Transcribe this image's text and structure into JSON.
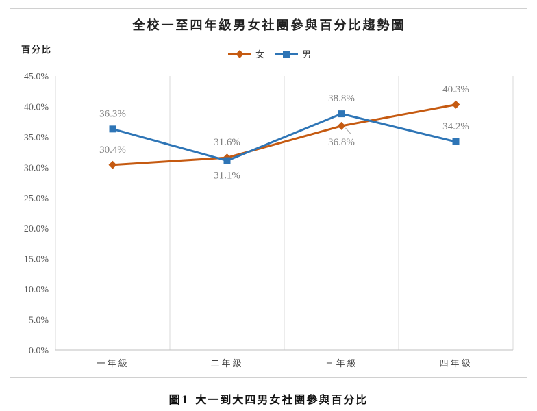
{
  "chart_data": {
    "type": "line",
    "title": "全校一至四年級男女社團參與百分比趨勢圖",
    "ylabel": "百分比",
    "xlabel": "",
    "categories": [
      "一年級",
      "二年級",
      "三年級",
      "四年級"
    ],
    "ylim": [
      0,
      45
    ],
    "ytick_step": 5,
    "ytick_format": "percent_1dp",
    "grid": "vertical",
    "legend_position": "top-center",
    "series": [
      {
        "name": "女",
        "color": "#c55a11",
        "marker": "diamond",
        "values": [
          30.4,
          31.6,
          36.8,
          40.3
        ],
        "labels": [
          "30.4%",
          "31.6%",
          "36.8%",
          "40.3%"
        ]
      },
      {
        "name": "男",
        "color": "#2e75b6",
        "marker": "square",
        "values": [
          36.3,
          31.1,
          38.8,
          34.2
        ],
        "labels": [
          "36.3%",
          "31.1%",
          "38.8%",
          "34.2%"
        ]
      }
    ]
  },
  "caption": "圖1  大一到大四男女社團參與百分比"
}
